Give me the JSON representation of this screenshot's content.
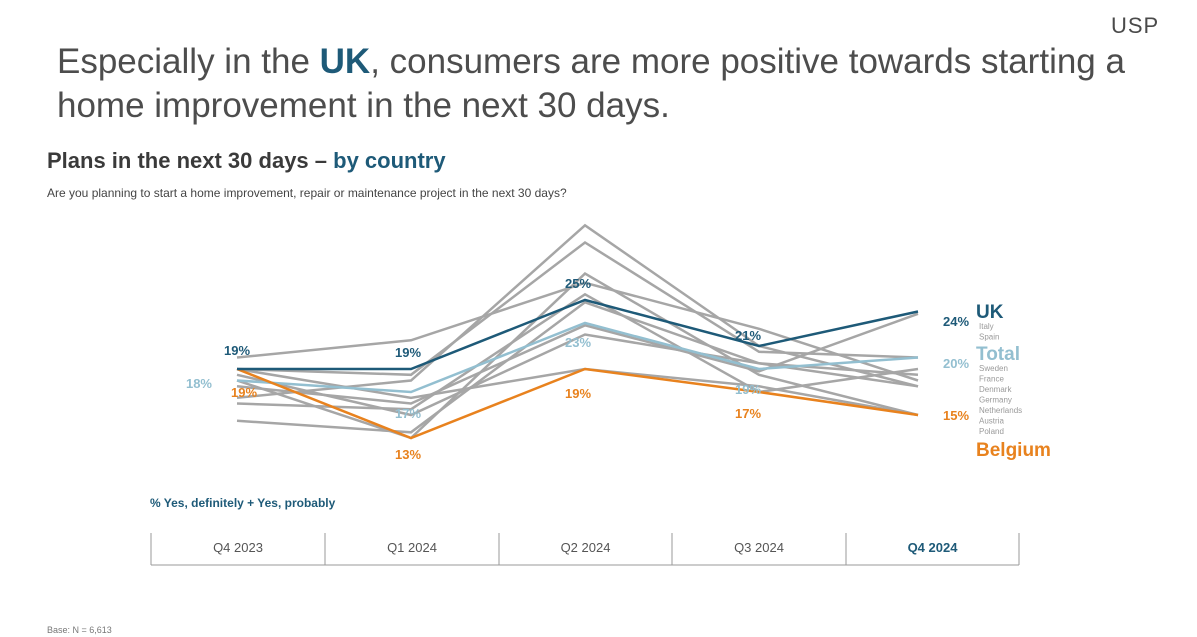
{
  "logo": "USP",
  "headline": {
    "part1": "Especially in the ",
    "highlight": "UK",
    "part2": ", consumers are more positive towards starting a home improvement in the next 30 days."
  },
  "subtitle": {
    "part1": "Plans in the next 30 days – ",
    "highlight": "by country"
  },
  "question": "Are you planning to start a home improvement, repair or maintenance project in the next 30 days?",
  "measure_label": "% Yes, definitely + Yes, probably",
  "base_note": "Base: N = 6,613",
  "colors": {
    "uk": "#1e5a78",
    "total": "#93bfd0",
    "belgium": "#e8821e",
    "other": "#a6a6a6"
  },
  "chart_data": {
    "type": "line",
    "categories": [
      "Q4 2023",
      "Q1 2024",
      "Q2 2024",
      "Q3 2024",
      "Q4 2024"
    ],
    "highlight_category": "Q4 2024",
    "series": [
      {
        "name": "UK",
        "key": "uk",
        "values": [
          19,
          19,
          25,
          21,
          24
        ],
        "labels": [
          "19%",
          "19%",
          "25%",
          "21%",
          "24%"
        ]
      },
      {
        "name": "Total",
        "key": "total",
        "values": [
          18,
          17,
          23,
          19,
          20
        ],
        "labels": [
          "18%",
          "17%",
          "23%",
          "19%",
          "20%"
        ]
      },
      {
        "name": "Belgium",
        "key": "belgium",
        "values": [
          19,
          13,
          19,
          17,
          15
        ],
        "labels": [
          "19%",
          "13%",
          "19%",
          "17%",
          "15%"
        ]
      },
      {
        "key": "other",
        "values": [
          17.5,
          16.0,
          22.8,
          18.8,
          23.8
        ]
      },
      {
        "key": "other",
        "values": [
          20.0,
          21.5,
          26.5,
          22.5,
          18.0
        ]
      },
      {
        "key": "other",
        "values": [
          19.0,
          18.5,
          30.0,
          20.5,
          20.0
        ]
      },
      {
        "key": "other",
        "values": [
          16.5,
          18.0,
          31.5,
          21.0,
          17.5
        ]
      },
      {
        "key": "other",
        "values": [
          14.5,
          13.5,
          24.8,
          19.5,
          17.5
        ]
      },
      {
        "key": "other",
        "values": [
          16.0,
          15.5,
          25.5,
          17.0,
          19.0
        ]
      },
      {
        "key": "other",
        "values": [
          18.0,
          13.0,
          27.3,
          18.5,
          15.0
        ]
      },
      {
        "key": "other",
        "values": [
          19.0,
          16.5,
          19.0,
          17.5,
          15.0
        ]
      },
      {
        "key": "other",
        "values": [
          18.5,
          15.0,
          22.0,
          19.5,
          18.5
        ]
      }
    ],
    "legend": {
      "uk": "UK",
      "uk_sub": [
        "Italy",
        "Spain"
      ],
      "total": "Total",
      "total_sub": [
        "Sweden",
        "France",
        "Denmark",
        "Germany",
        "Netherlands",
        "Austria",
        "Poland"
      ],
      "belgium": "Belgium"
    },
    "legend_position": "right"
  }
}
